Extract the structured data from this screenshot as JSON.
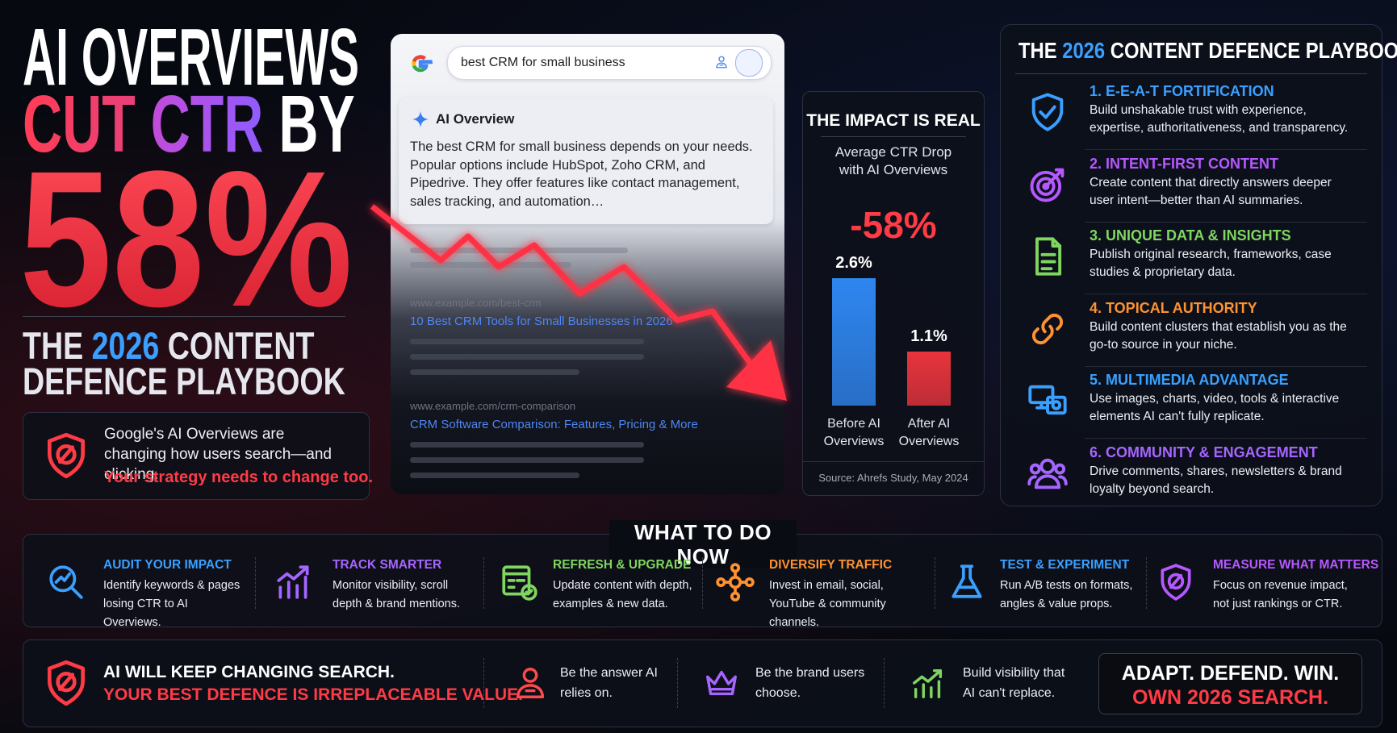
{
  "hero": {
    "line1": "AI OVERVIEWS",
    "cut": "CUT",
    "ctr": "CTR",
    "by": "BY",
    "big": "58%",
    "sub_the": "THE",
    "sub_year": "2026",
    "sub_content": "CONTENT",
    "sub_line2": "DEFENCE PLAYBOOK"
  },
  "alert": {
    "text": "Google's AI Overviews are changing how users search—and clicking.",
    "emphasis": "Your strategy needs to change too."
  },
  "search_mock": {
    "query": "best CRM for small business",
    "ai_label": "AI Overview",
    "ai_text": "The best CRM for small business depends on your needs. Popular options include HubSpot, Zoho CRM, and Pipedrive. They offer features like contact management, sales tracking, and automation…",
    "results": [
      {
        "url": "www.example.com/best-crm",
        "title": "10 Best CRM Tools for Small Businesses in 2026"
      },
      {
        "url": "www.example.com/crm-comparison",
        "title": "CRM Software Comparison: Features, Pricing & More"
      }
    ]
  },
  "impact": {
    "title": "THE IMPACT IS REAL",
    "subtitle": "Average CTR Drop with AI Overviews",
    "headline": "-58%",
    "chart": {
      "type": "bar",
      "categories": [
        "Before AI Overviews",
        "After AI Overviews"
      ],
      "values": [
        2.6,
        1.1
      ],
      "value_labels": [
        "2.6%",
        "1.1%"
      ],
      "colors": [
        "#2f86f0",
        "#e8343d"
      ]
    },
    "source": "Source: Ahrefs Study, May 2024"
  },
  "playbook": {
    "title_the": "THE",
    "title_year": "2026",
    "title_rest": "CONTENT DEFENCE PLAYBOOK",
    "items": [
      {
        "title": "1. E-E-A-T FORTIFICATION",
        "text": "Build unshakable trust with experience, expertise, authoritativeness, and transparency.",
        "color": "#3aa0ff"
      },
      {
        "title": "2. INTENT-FIRST CONTENT",
        "text": "Create content that directly answers deeper user intent—better than AI summaries.",
        "color": "#b658ff"
      },
      {
        "title": "3. UNIQUE DATA & INSIGHTS",
        "text": "Publish original research, frameworks, case studies & proprietary data.",
        "color": "#7fd65f"
      },
      {
        "title": "4. TOPICAL AUTHORITY",
        "text": "Build content clusters that establish you as the go-to source in your niche.",
        "color": "#ff9230"
      },
      {
        "title": "5. MULTIMEDIA ADVANTAGE",
        "text": "Use images, charts, video, tools & interactive elements AI can't fully replicate.",
        "color": "#3aa0ff"
      },
      {
        "title": "6. COMMUNITY & ENGAGEMENT",
        "text": "Drive comments, shares, newsletters & brand loyalty beyond search.",
        "color": "#a566ff"
      }
    ]
  },
  "actions": {
    "title": "WHAT TO DO NOW",
    "items": [
      {
        "title": "AUDIT YOUR IMPACT",
        "text": "Identify keywords & pages losing CTR to AI Overviews.",
        "color": "#3aa0ff"
      },
      {
        "title": "TRACK SMARTER",
        "text": "Monitor visibility, scroll depth & brand mentions.",
        "color": "#a566ff"
      },
      {
        "title": "REFRESH & UPGRADE",
        "text": "Update content with depth, examples & new data.",
        "color": "#7fd65f"
      },
      {
        "title": "DIVERSIFY TRAFFIC",
        "text": "Invest in email, social, YouTube & community channels.",
        "color": "#ff9230"
      },
      {
        "title": "TEST & EXPERIMENT",
        "text": "Run A/B tests on formats, angles & value props.",
        "color": "#3aa0ff"
      },
      {
        "title": "MEASURE WHAT MATTERS",
        "text": "Focus on revenue impact, not just rankings or CTR.",
        "color": "#b658ff"
      }
    ]
  },
  "footer": {
    "line1": "AI WILL KEEP CHANGING SEARCH.",
    "line2": "YOUR BEST DEFENCE IS IRREPLACEABLE VALUE.",
    "points": [
      {
        "text": "Be the answer AI relies on.",
        "color": "#ff4a4a"
      },
      {
        "text": "Be the brand users choose.",
        "color": "#a566ff"
      },
      {
        "text": "Build visibility that AI can't replace.",
        "color": "#7fd65f"
      }
    ],
    "cta1": "ADAPT. DEFEND. WIN.",
    "cta2": "OWN 2026 SEARCH."
  }
}
